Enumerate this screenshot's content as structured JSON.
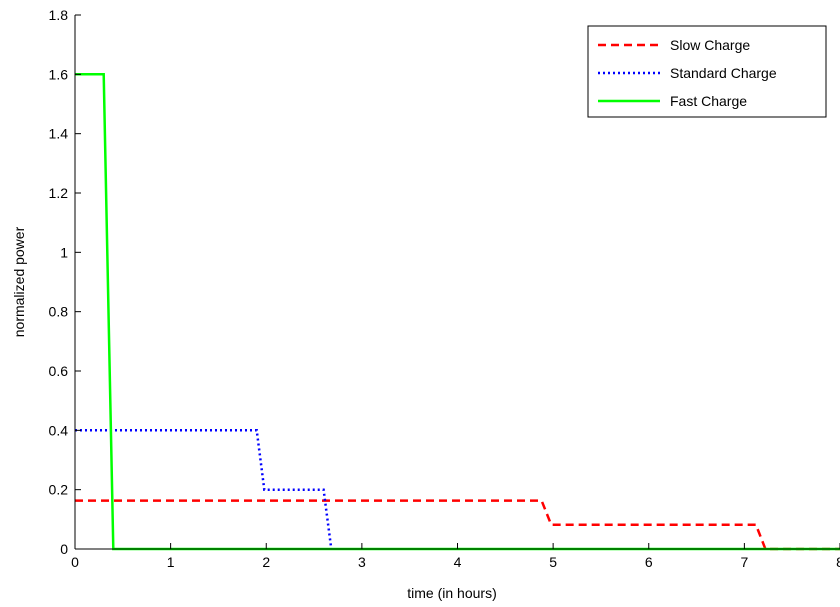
{
  "chart_data": {
    "type": "line",
    "title": "",
    "xlabel": "time (in hours)",
    "ylabel": "normalized power",
    "xlim": [
      0,
      8
    ],
    "ylim": [
      0,
      1.8
    ],
    "xticks": [
      0,
      1,
      2,
      3,
      4,
      5,
      6,
      7,
      8
    ],
    "yticks": [
      0,
      0.2,
      0.4,
      0.6,
      0.8,
      1,
      1.2,
      1.4,
      1.6,
      1.8
    ],
    "xtick_labels": [
      "0",
      "1",
      "2",
      "3",
      "4",
      "5",
      "6",
      "7",
      "8"
    ],
    "ytick_labels": [
      "0",
      "0.2",
      "0.4",
      "0.6",
      "0.8",
      "1",
      "1.2",
      "1.4",
      "1.6",
      "1.8"
    ],
    "grid": false,
    "legend_position": "top-right",
    "series": [
      {
        "name": "Slow Charge",
        "color": "#ff0000",
        "style": "dashed",
        "x": [
          0,
          4.88,
          4.98,
          7.12,
          7.22,
          8
        ],
        "y": [
          0.163,
          0.163,
          0.082,
          0.082,
          0,
          0
        ]
      },
      {
        "name": "Standard Charge",
        "color": "#0000ff",
        "style": "dotted",
        "x": [
          0,
          1.9,
          1.98,
          2.6,
          2.68
        ],
        "y": [
          0.4,
          0.4,
          0.2,
          0.2,
          0
        ]
      },
      {
        "name": "Fast Charge",
        "color": "#00ff00",
        "style": "solid",
        "x": [
          0,
          0.3,
          0.4,
          8
        ],
        "y": [
          1.6,
          1.6,
          0,
          0
        ]
      }
    ]
  }
}
